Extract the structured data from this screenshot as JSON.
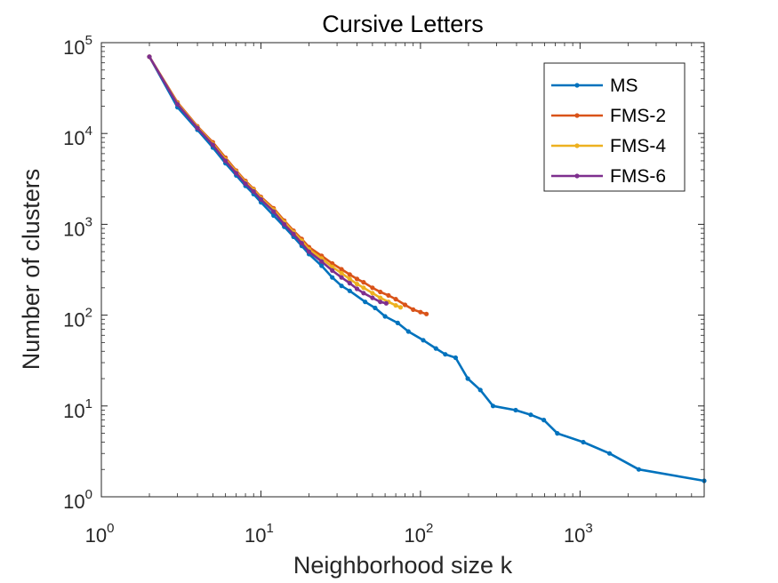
{
  "chart_data": {
    "type": "line",
    "title": "Cursive Letters",
    "xlabel": "Neighborhood size k",
    "ylabel": "Number of clusters",
    "xscale": "log",
    "yscale": "log",
    "xlim": [
      1,
      6000
    ],
    "ylim": [
      1,
      100000
    ],
    "xticks": [
      {
        "base": "10",
        "exp": "0"
      },
      {
        "base": "10",
        "exp": "1"
      },
      {
        "base": "10",
        "exp": "2"
      },
      {
        "base": "10",
        "exp": "3"
      }
    ],
    "yticks": [
      {
        "base": "10",
        "exp": "0"
      },
      {
        "base": "10",
        "exp": "1"
      },
      {
        "base": "10",
        "exp": "2"
      },
      {
        "base": "10",
        "exp": "3"
      },
      {
        "base": "10",
        "exp": "4"
      },
      {
        "base": "10",
        "exp": "5"
      }
    ],
    "grid": false,
    "legend_position": "top-right",
    "series": [
      {
        "name": "MS",
        "color": "#0072BD",
        "x": [
          2,
          3,
          4,
          5,
          6,
          7,
          8,
          9,
          10,
          12,
          14,
          16,
          18,
          20,
          24,
          28,
          32,
          36,
          45,
          52,
          60,
          72,
          84,
          104,
          125,
          143,
          166,
          198,
          237,
          285,
          395,
          491,
          593,
          720,
          1048,
          1530,
          2334,
          6000
        ],
        "y": [
          70000,
          19500,
          11000,
          7000,
          4700,
          3450,
          2650,
          2150,
          1750,
          1250,
          940,
          730,
          580,
          470,
          350,
          260,
          210,
          185,
          140,
          120,
          97,
          82,
          66,
          53,
          43,
          37,
          34,
          20,
          15,
          10,
          9,
          8,
          7,
          5,
          4,
          3,
          2,
          1.5
        ]
      },
      {
        "name": "FMS-2",
        "color": "#D95319",
        "x": [
          2,
          3,
          4,
          5,
          6,
          7,
          8,
          9,
          10,
          12,
          14,
          16,
          18,
          20,
          24,
          28,
          32,
          36,
          40,
          44,
          50,
          56,
          63,
          70,
          80,
          90,
          100,
          109
        ],
        "y": [
          70000,
          22000,
          12000,
          8000,
          5400,
          3900,
          3000,
          2450,
          2000,
          1500,
          1100,
          850,
          690,
          560,
          450,
          370,
          320,
          280,
          250,
          230,
          200,
          180,
          165,
          150,
          130,
          115,
          108,
          103
        ]
      },
      {
        "name": "FMS-4",
        "color": "#EDB120",
        "x": [
          2,
          3,
          4,
          5,
          6,
          7,
          8,
          9,
          10,
          12,
          14,
          16,
          18,
          20,
          24,
          28,
          32,
          36,
          40,
          44,
          50,
          56,
          63,
          70,
          75
        ],
        "y": [
          70000,
          21500,
          11800,
          7700,
          5200,
          3800,
          2900,
          2400,
          1950,
          1450,
          1060,
          820,
          660,
          530,
          420,
          340,
          290,
          250,
          220,
          200,
          175,
          155,
          140,
          128,
          122
        ]
      },
      {
        "name": "FMS-6",
        "color": "#7E2F8E",
        "x": [
          2,
          3,
          4,
          5,
          6,
          7,
          8,
          9,
          10,
          12,
          14,
          16,
          18,
          20,
          24,
          28,
          32,
          36,
          40,
          44,
          50,
          56,
          61
        ],
        "y": [
          70000,
          21000,
          11500,
          7500,
          5000,
          3650,
          2800,
          2300,
          1880,
          1380,
          1000,
          780,
          620,
          500,
          390,
          310,
          260,
          225,
          195,
          175,
          155,
          140,
          135
        ]
      }
    ]
  }
}
